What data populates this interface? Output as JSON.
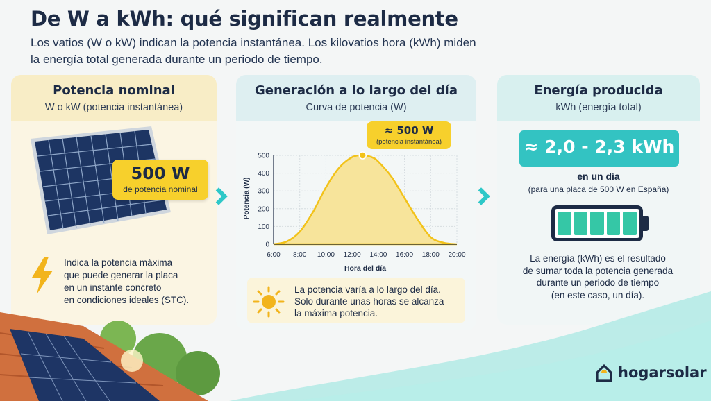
{
  "header": {
    "title": "De W a kWh: qué significan realmente",
    "subtitle_line1": "Los vatios (W o kW) indican la potencia instantánea. Los kilovatios hora (kWh) miden",
    "subtitle_line2": "la energía total generada durante un periodo de tiempo."
  },
  "card_nominal": {
    "title": "Potencia nominal",
    "subtitle": "W o kW (potencia instantánea)",
    "badge_value": "500 W",
    "badge_label": "de potencia nominal",
    "desc": [
      "Indica la potencia máxima",
      "que puede generar la placa",
      "en un instante concreto",
      "en condiciones ideales (STC)."
    ],
    "icon": "lightning-icon"
  },
  "card_generation": {
    "title": "Generación a lo largo del día",
    "subtitle": "Curva de potencia (W)",
    "peak_value": "≈ 500 W",
    "peak_label": "(potencia instantánea)",
    "desc": [
      "La potencia varía a lo largo del día.",
      "Solo durante unas horas se alcanza",
      "la máxima potencia."
    ],
    "icon": "sun-icon"
  },
  "card_energy": {
    "title": "Energía producida",
    "subtitle": "kWh (energía total)",
    "badge_value": "≈ 2,0 - 2,3 kWh",
    "in_day": "en un día",
    "in_day_note": "(para una placa de 500 W en España)",
    "desc": [
      "La energía (kWh) es el resultado",
      "de sumar toda la potencia generada",
      "durante un periodo de tiempo",
      "(en este caso, un día)."
    ],
    "icon": "battery-icon"
  },
  "brand": {
    "name": "hogarsolar"
  },
  "colors": {
    "accent_yellow": "#f7d02c",
    "accent_teal": "#33c3c2",
    "navy": "#1d2b45"
  },
  "chart_data": {
    "type": "area",
    "xlabel": "Hora del día",
    "ylabel": "Potencia (W)",
    "x_ticks": [
      "6:00",
      "8:00",
      "10:00",
      "12:00",
      "14:00",
      "16:00",
      "18:00",
      "20:00"
    ],
    "y_ticks": [
      "0",
      "100",
      "200",
      "300",
      "400",
      "500"
    ],
    "xlim": [
      6,
      20
    ],
    "ylim": [
      0,
      500
    ],
    "grid": true,
    "series": [
      {
        "x": [
          6,
          7,
          8,
          9,
          10,
          11,
          12,
          12.8,
          13.5,
          14,
          15,
          16,
          17,
          18,
          19,
          20
        ],
        "y": [
          0,
          15,
          70,
          180,
          320,
          430,
          490,
          500,
          490,
          465,
          380,
          260,
          140,
          40,
          8,
          0
        ]
      }
    ],
    "peak": {
      "x": 12.8,
      "y": 500
    }
  }
}
